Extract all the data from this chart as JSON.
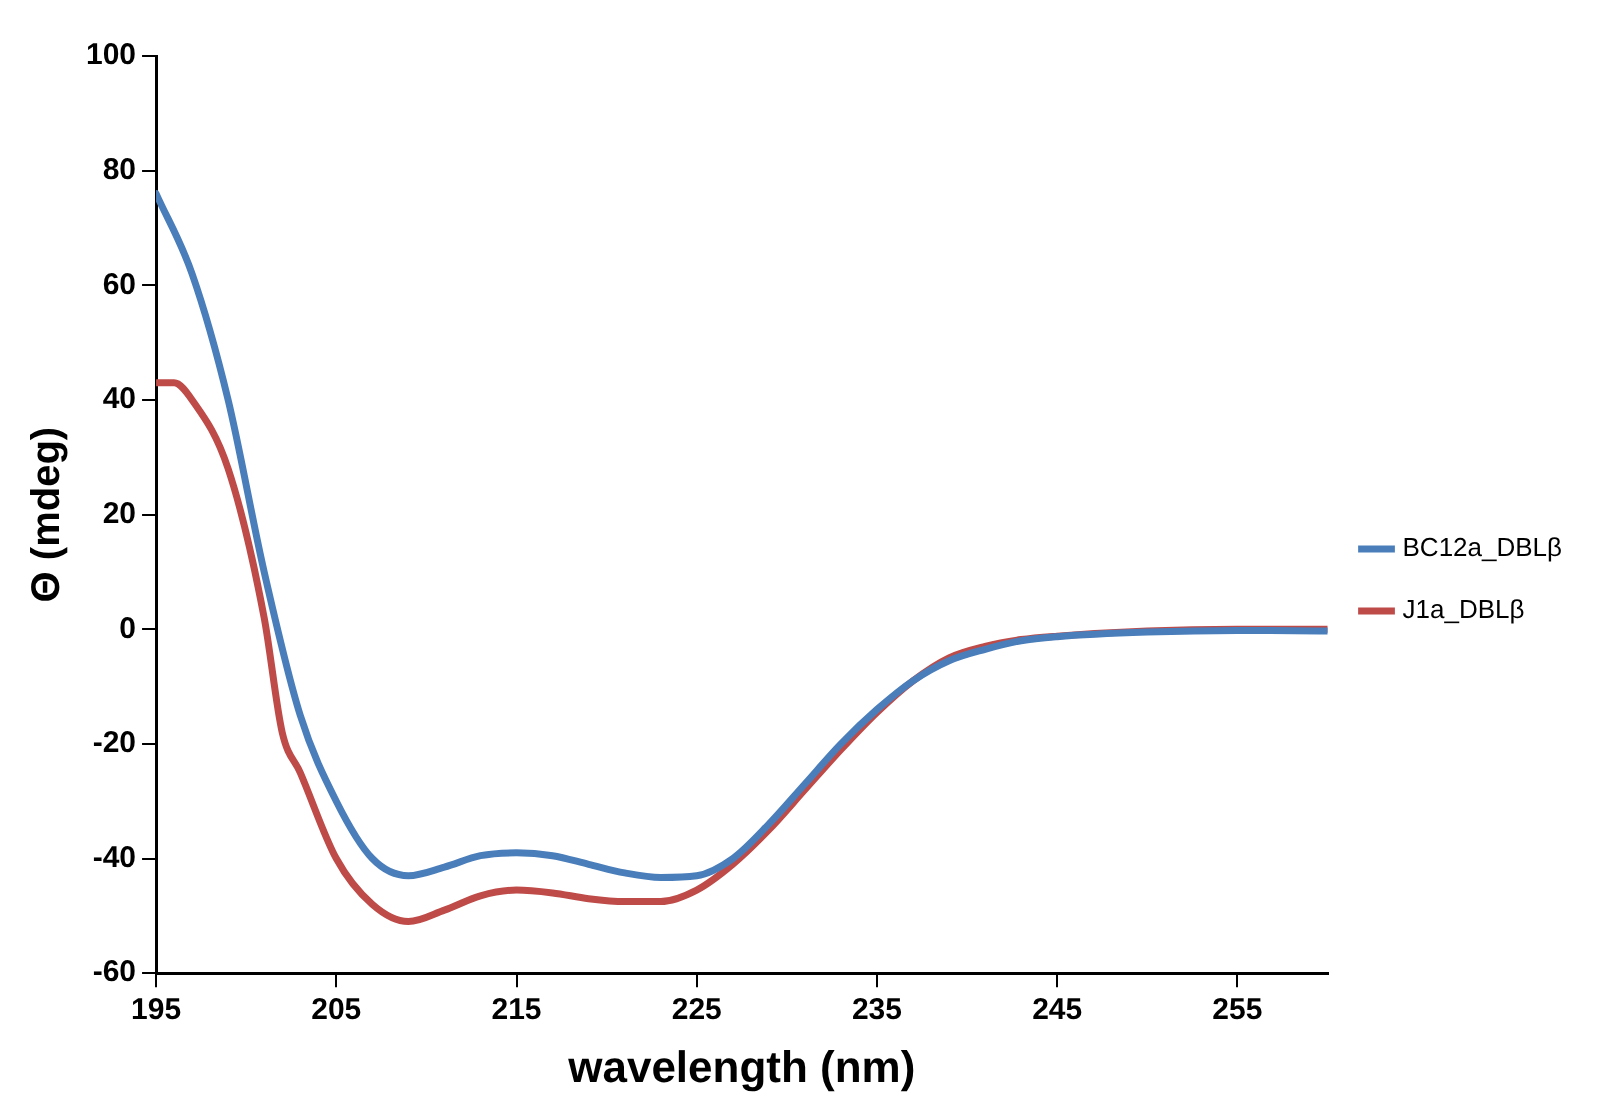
{
  "chart_data": {
    "type": "line",
    "xlabel": "wavelength (nm)",
    "ylabel": "Θ (mdeg)",
    "xlim": [
      195,
      260
    ],
    "xticks": [
      195,
      205,
      215,
      225,
      235,
      245,
      255
    ],
    "ylim": [
      -60,
      100
    ],
    "yticks": [
      -60,
      -40,
      -20,
      0,
      20,
      40,
      60,
      80,
      100
    ],
    "grid": false,
    "legend": "right",
    "marker": "none",
    "line_style": "solid",
    "series": [
      {
        "name": "BC12a_DBLβ",
        "color": "#4a7ebb",
        "x": [
          195,
          197,
          199,
          201,
          203,
          205,
          207,
          209,
          211,
          213,
          215,
          217,
          219,
          221,
          223,
          225,
          227,
          229,
          231,
          233,
          235,
          237,
          239,
          241,
          243,
          245,
          250,
          255,
          260
        ],
        "values": [
          76,
          62,
          40,
          10,
          -15,
          -30,
          -40,
          -43,
          -41.5,
          -39.5,
          -39,
          -39.5,
          -41,
          -42.5,
          -43.3,
          -43,
          -40,
          -34,
          -27,
          -20,
          -14,
          -9,
          -5.5,
          -3.5,
          -2,
          -1.3,
          -0.5,
          -0.2,
          -0.3
        ]
      },
      {
        "name": "J1a_DBLβ",
        "color": "#be4b48",
        "x": [
          195,
          196,
          197,
          199,
          201,
          202,
          203,
          205,
          207,
          209,
          211,
          213,
          215,
          217,
          219,
          221,
          223,
          225,
          227,
          229,
          231,
          233,
          235,
          237,
          239,
          241,
          243,
          245,
          250,
          255,
          260
        ],
        "values": [
          43,
          43,
          40,
          28,
          2,
          -18,
          -25,
          -40,
          -48,
          -51,
          -49,
          -46.5,
          -45.5,
          -46,
          -47,
          -47.5,
          -47.5,
          -45.5,
          -41,
          -35,
          -28,
          -21,
          -14.5,
          -9,
          -5,
          -3,
          -1.8,
          -1.2,
          -0.3,
          0,
          0
        ]
      }
    ]
  }
}
